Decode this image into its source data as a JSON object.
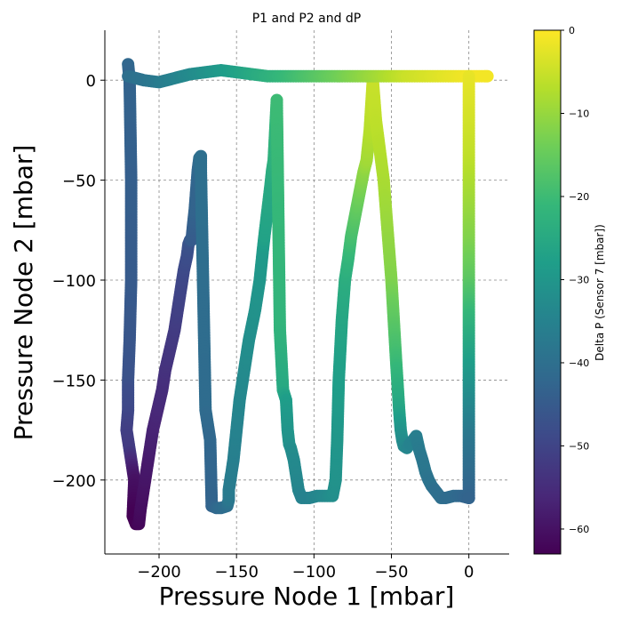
{
  "chart_data": {
    "type": "scatter",
    "title": "P1 and P2 and dP",
    "xlabel": "Pressure Node 1 [mbar]",
    "ylabel": "Pressure Node 2 [mbar]",
    "xlim": [
      -235,
      26
    ],
    "ylim": [
      -237,
      25
    ],
    "x_ticks": [
      -200,
      -150,
      -100,
      -50,
      0
    ],
    "x_tick_labels": [
      "−200",
      "−150",
      "−100",
      "−50",
      "0"
    ],
    "y_ticks": [
      0,
      -50,
      -100,
      -150,
      -200
    ],
    "y_tick_labels": [
      "0",
      "−50",
      "−100",
      "−150",
      "−200"
    ],
    "grid": true,
    "colorbar": {
      "label": "Delta P (Sensor 7 [mbar])",
      "range": [
        -63,
        0
      ],
      "ticks": [
        0,
        -10,
        -20,
        -30,
        -40,
        -50,
        -60
      ],
      "tick_labels": [
        "0",
        "−10",
        "−20",
        "−30",
        "−40",
        "−50",
        "−60"
      ],
      "colormap": "viridis",
      "colormap_stops": [
        "#440154",
        "#482878",
        "#3e4989",
        "#31688e",
        "#26828e",
        "#1f9e89",
        "#35b779",
        "#6ece58",
        "#b5de2b",
        "#fde725"
      ]
    },
    "series": [
      {
        "x": [
          -220,
          -219,
          -218,
          -218,
          -219,
          -220,
          -220,
          -220,
          -221,
          -219,
          -218,
          -217,
          -216,
          -217,
          -215,
          -213,
          -212,
          -210,
          -208,
          -206,
          -204,
          -201,
          -198,
          -196,
          -193,
          -190,
          -188,
          -186,
          -184,
          -182,
          -181,
          -180,
          -179,
          -178,
          -177,
          -176,
          -175,
          -174,
          -173,
          -173,
          -170,
          -167,
          -166
        ],
        "y": [
          8,
          0,
          -50,
          -100,
          -130,
          -150,
          -155,
          -165,
          -175,
          -185,
          -190,
          -195,
          -200,
          -218,
          -222,
          -222,
          -215,
          -205,
          -195,
          -185,
          -175,
          -165,
          -155,
          -145,
          -135,
          -125,
          -115,
          -105,
          -95,
          -88,
          -82,
          -80,
          -80,
          -72,
          -65,
          -55,
          -45,
          -39,
          -38,
          -45,
          -165,
          -180,
          -213
        ],
        "dp": [
          -42,
          -43,
          -44,
          -45,
          -46,
          -47,
          -48,
          -49,
          -51,
          -52,
          -55,
          -58,
          -60,
          -63,
          -63,
          -62,
          -61,
          -60,
          -59,
          -58,
          -57,
          -56,
          -55,
          -54,
          -53,
          -52,
          -51,
          -50,
          -49,
          -48,
          -47,
          -46,
          -45,
          -44,
          -43,
          -43,
          -42,
          -41,
          -40,
          -40,
          -41,
          -42,
          -43
        ]
      },
      {
        "x": [
          -166,
          -163,
          -160,
          -156,
          -155,
          -155,
          -152,
          -150,
          -148,
          -145,
          -142,
          -138,
          -135,
          -133,
          -132,
          -130,
          -128,
          -127,
          -126,
          -125,
          -124
        ],
        "y": [
          -213,
          -214,
          -214,
          -213,
          -210,
          -205,
          -190,
          -175,
          -160,
          -145,
          -130,
          -115,
          -100,
          -85,
          -78,
          -65,
          -52,
          -45,
          -40,
          -25,
          -10
        ],
        "dp": [
          -43,
          -42,
          -41,
          -40,
          -38,
          -37,
          -36,
          -35,
          -34,
          -33,
          -32,
          -31,
          -30,
          -29,
          -27,
          -26,
          -25,
          -24,
          -23,
          -22,
          -20
        ]
      },
      {
        "x": [
          -124,
          -122,
          -120,
          -118,
          -117,
          -116,
          -115,
          -113,
          -110,
          -108,
          -103,
          -98,
          -93,
          -88,
          -86,
          -85,
          -84,
          -82,
          -80,
          -78,
          -76,
          -74,
          -72,
          -70,
          -68,
          -66,
          -64,
          -62
        ],
        "y": [
          -10,
          -125,
          -155,
          -160,
          -175,
          -182,
          -184,
          -190,
          -205,
          -209,
          -209,
          -208,
          -208,
          -208,
          -200,
          -180,
          -150,
          -120,
          -100,
          -90,
          -78,
          -70,
          -62,
          -54,
          -46,
          -40,
          -25,
          0
        ],
        "dp": [
          -20,
          -22,
          -25,
          -28,
          -30,
          -31,
          -32,
          -33,
          -34,
          -35,
          -35,
          -34,
          -33,
          -32,
          -31,
          -30,
          -28,
          -26,
          -24,
          -22,
          -19,
          -17,
          -15,
          -13,
          -11,
          -9,
          -7,
          -5
        ]
      },
      {
        "x": [
          -62,
          -60,
          -55,
          -50,
          -47,
          -45,
          -44,
          -43,
          -42,
          -40,
          -38,
          -36,
          -34,
          -32,
          -30,
          -28,
          -26,
          -24,
          -22,
          -18,
          -15,
          -10,
          -5,
          0
        ],
        "y": [
          0,
          -20,
          -50,
          -100,
          -140,
          -165,
          -175,
          -180,
          -183,
          -184,
          -182,
          -180,
          -178,
          -185,
          -190,
          -196,
          -200,
          -203,
          -205,
          -209,
          -209,
          -208,
          -208,
          -209
        ],
        "dp": [
          -5,
          -6,
          -8,
          -12,
          -20,
          -26,
          -30,
          -32,
          -33,
          -34,
          -35,
          -35,
          -36,
          -37,
          -38,
          -38,
          -39,
          -39,
          -40,
          -40,
          -41,
          -41,
          -42,
          -43
        ]
      },
      {
        "x": [
          -220,
          -210,
          -200,
          -190,
          -180,
          -170,
          -160,
          -150,
          -140,
          -130,
          -120,
          -110,
          -100,
          -90,
          -80,
          -70,
          -60,
          -50,
          -40,
          -30,
          -20,
          -10,
          0,
          10,
          12
        ],
        "y": [
          2,
          0,
          -1,
          1,
          3,
          4,
          5,
          4,
          3,
          2,
          2,
          2,
          2,
          2,
          2,
          2,
          2,
          2,
          2,
          2,
          2,
          2,
          2,
          2,
          2
        ],
        "dp": [
          -40,
          -39,
          -37,
          -35,
          -33,
          -31,
          -29,
          -27,
          -25,
          -23,
          -21,
          -19,
          -17,
          -15,
          -13,
          -11,
          -9,
          -7,
          -5,
          -4,
          -3,
          -2,
          -1,
          -1,
          -1
        ]
      },
      {
        "x": [
          0,
          0,
          0,
          0,
          0,
          0,
          0,
          0,
          0,
          0
        ],
        "y": [
          2,
          -20,
          -40,
          -60,
          -80,
          -100,
          -120,
          -150,
          -180,
          -209
        ],
        "dp": [
          -2,
          -4,
          -6,
          -9,
          -12,
          -16,
          -22,
          -30,
          -38,
          -43
        ]
      }
    ]
  }
}
